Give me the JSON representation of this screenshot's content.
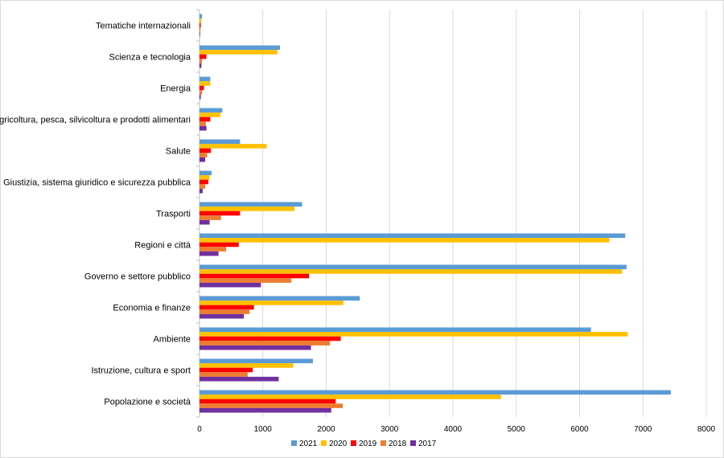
{
  "chart_data": {
    "type": "bar",
    "orientation": "horizontal",
    "categories": [
      "Tematiche internazionali",
      "Scienza e tecnologia",
      "Energia",
      "Agricoltura, pesca, silvicoltura e prodotti alimentari",
      "Salute",
      "Giustizia, sistema giuridico e sicurezza pubblica",
      "Trasporti",
      "Regioni e città",
      "Governo e settore pubblico",
      "Economia e finanze",
      "Ambiente",
      "Istruzione, cultura e sport",
      "Popolazione e società"
    ],
    "series": [
      {
        "name": "2021",
        "color": "#5B9BD5",
        "values": [
          40,
          1270,
          170,
          360,
          640,
          190,
          1620,
          6720,
          6740,
          2530,
          6180,
          1790,
          7440
        ]
      },
      {
        "name": "2020",
        "color": "#FFC000",
        "values": [
          30,
          1230,
          170,
          330,
          1060,
          160,
          1500,
          6470,
          6670,
          2270,
          6760,
          1480,
          4760
        ]
      },
      {
        "name": "2019",
        "color": "#FF0000",
        "values": [
          20,
          110,
          70,
          170,
          180,
          140,
          640,
          620,
          1730,
          860,
          2230,
          840,
          2150
        ]
      },
      {
        "name": "2018",
        "color": "#ED7D31",
        "values": [
          15,
          40,
          40,
          100,
          120,
          90,
          340,
          420,
          1450,
          790,
          2060,
          760,
          2260
        ]
      },
      {
        "name": "2017",
        "color": "#7030A0",
        "values": [
          10,
          30,
          20,
          110,
          90,
          50,
          160,
          300,
          970,
          700,
          1760,
          1250,
          2080
        ]
      }
    ],
    "xlim": [
      0,
      8000
    ],
    "xticks": [
      "0",
      "1000",
      "2000",
      "3000",
      "4000",
      "5000",
      "6000",
      "7000",
      "8000"
    ],
    "grid": true,
    "legend_position": "bottom",
    "title": "",
    "xlabel": "",
    "ylabel": ""
  }
}
